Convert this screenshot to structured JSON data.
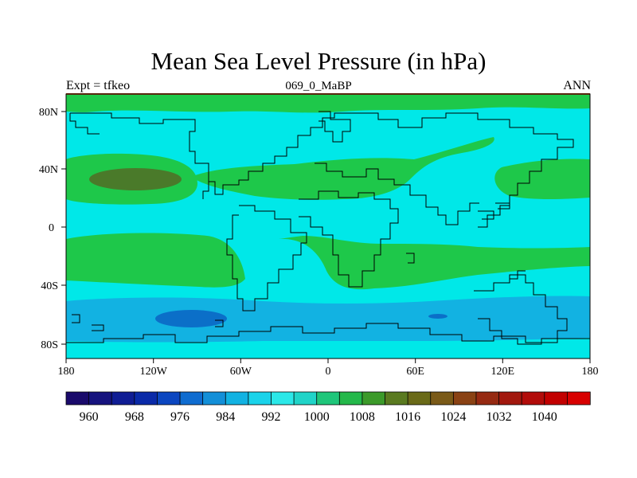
{
  "title": "Mean Sea Level Pressure (in hPa)",
  "subtitle_left": "Expt = tfkeo",
  "subtitle_center": "069_0_MaBP",
  "subtitle_right": "ANN",
  "map": {
    "lon_ticks": [
      "180",
      "120W",
      "60W",
      "0",
      "60E",
      "120E",
      "180"
    ],
    "lat_ticks": [
      "80N",
      "40N",
      "0",
      "40S",
      "80S"
    ],
    "extent": {
      "lon": [
        -180,
        180
      ],
      "lat": [
        -90,
        90
      ]
    }
  },
  "colorbar": {
    "labels": [
      "960",
      "968",
      "976",
      "984",
      "992",
      "1000",
      "1008",
      "1016",
      "1024",
      "1032",
      "1040"
    ],
    "colors": [
      "#1a0a6b",
      "#16137e",
      "#101d94",
      "#0a2aa8",
      "#0b46c0",
      "#0f6cd0",
      "#138fd8",
      "#12b2e2",
      "#1ad3ea",
      "#2be8e8",
      "#20d4c8",
      "#1fc67a",
      "#24b84a",
      "#3c9a2a",
      "#5a7a20",
      "#6a6a18",
      "#7a5a18",
      "#8a4214",
      "#962a12",
      "#a2180e",
      "#b20c0a",
      "#c20000",
      "#d80000"
    ]
  },
  "legend_colors": {
    "p1000_1008": "#00e8e8",
    "p1008_1016": "#1ec84a",
    "p1016_1024": "#4a7a2a",
    "p992_1000": "#12b2e2",
    "p984_992": "#0b6fc8",
    "coast": "#000000",
    "border_top": "#b04a1a"
  }
}
